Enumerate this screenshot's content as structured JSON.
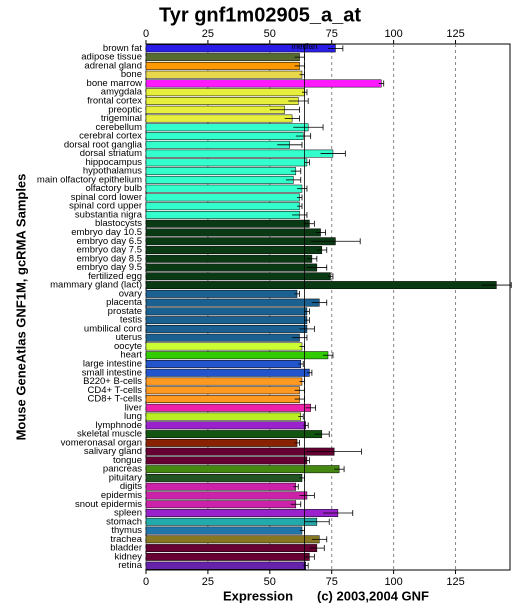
{
  "chart_data": {
    "type": "bar",
    "orientation": "horizontal",
    "title": "Tyr gnf1m02905_a_at",
    "y_label": "Mouse GeneAtlas GNF1M, gcRMA Samples",
    "x_label": "Expression",
    "credit": "(c) 2003,2004 GNF",
    "median_label": "median",
    "median": 64,
    "xlim": [
      0,
      147
    ],
    "xticks": [
      0,
      25,
      50,
      75,
      100,
      125
    ],
    "grid": true,
    "categories": [
      "brown fat",
      "adipose tissue",
      "adrenal gland",
      "bone",
      "bone marrow",
      "amygdala",
      "frontal cortex",
      "preoptic",
      "trigeminal",
      "cerebellum",
      "cerebral cortex",
      "dorsal root ganglia",
      "dorsal striatum",
      "hippocampus",
      "hypothalamus",
      "main olfactory epithelium",
      "olfactory bulb",
      "spinal cord lower",
      "spinal cord upper",
      "substantia nigra",
      "blastocysts",
      "embryo day 10.5",
      "embryo day 6.5",
      "embryo day 7.5",
      "embryo day 8.5",
      "embryo day 9.5",
      "fertilized egg",
      "mammary gland (lact)",
      "ovary",
      "placenta",
      "prostate",
      "testis",
      "umbilical cord",
      "uterus",
      "oocyte",
      "heart",
      "large intestine",
      "small intestine",
      "B220+ B-cells",
      "CD4+ T-cells",
      "CD8+ T-cells",
      "liver",
      "lung",
      "lymphnode",
      "skeletal muscle",
      "vomeronasal organ",
      "salivary gland",
      "tongue",
      "pancreas",
      "pituitary",
      "digits",
      "epidermis",
      "snout epidermis",
      "spleen",
      "stomach",
      "thymus",
      "trachea",
      "bladder",
      "kidney",
      "retina"
    ],
    "values": [
      76.5,
      62,
      62,
      63,
      95,
      64,
      61.5,
      56,
      59,
      65.5,
      63.5,
      58,
      75.5,
      65,
      60.5,
      59.5,
      63,
      62,
      62,
      62,
      66,
      70.5,
      76.5,
      71,
      67,
      69,
      74.5,
      141.5,
      61,
      70,
      65,
      65,
      65,
      62,
      63,
      73.5,
      62.5,
      66,
      63,
      62,
      62,
      66.5,
      62.5,
      64.5,
      71,
      61,
      76,
      65,
      78,
      63,
      60.5,
      65,
      60.5,
      77.5,
      69,
      63,
      70,
      69,
      66,
      64.5
    ],
    "errors": [
      3,
      2,
      2,
      1,
      1,
      1,
      4,
      6,
      3,
      6,
      3,
      5,
      5,
      1,
      2,
      3,
      2,
      1,
      1,
      3,
      2,
      2,
      10,
      2,
      2,
      4,
      1,
      6,
      1,
      3,
      1,
      1,
      3,
      3,
      1,
      2,
      1,
      1,
      1,
      2,
      2,
      2,
      1,
      1,
      3,
      1,
      11,
      1,
      2,
      1,
      1,
      3,
      2,
      6,
      5,
      1,
      3,
      3,
      2,
      1
    ],
    "colors": [
      "#2a1ee6",
      "#556b2f",
      "#ff9900",
      "#e6d84a",
      "#ff1aff",
      "#e6f03c",
      "#e6f03c",
      "#e6f03c",
      "#e6f03c",
      "#33ffcc",
      "#33ffcc",
      "#33ffcc",
      "#33ffcc",
      "#33ffcc",
      "#33ffcc",
      "#33ffcc",
      "#33ffcc",
      "#33ffcc",
      "#33ffcc",
      "#33ffcc",
      "#0a3a14",
      "#0a3a14",
      "#0a3a14",
      "#0a3a14",
      "#0a3a14",
      "#0a3a14",
      "#0a3a14",
      "#0a3a14",
      "#1a6090",
      "#1a6090",
      "#1a6090",
      "#1a6090",
      "#1a6090",
      "#1a6090",
      "#ccff33",
      "#33cc00",
      "#2255cc",
      "#2255cc",
      "#ff9922",
      "#ff9922",
      "#ff9922",
      "#ee22aa",
      "#bbee22",
      "#9922cc",
      "#115511",
      "#882200",
      "#660033",
      "#660033",
      "#448811",
      "#225522",
      "#cc22aa",
      "#cc22aa",
      "#cc22aa",
      "#9922cc",
      "#22aaaa",
      "#2277aa",
      "#887722",
      "#660033",
      "#660033",
      "#6622aa"
    ]
  }
}
